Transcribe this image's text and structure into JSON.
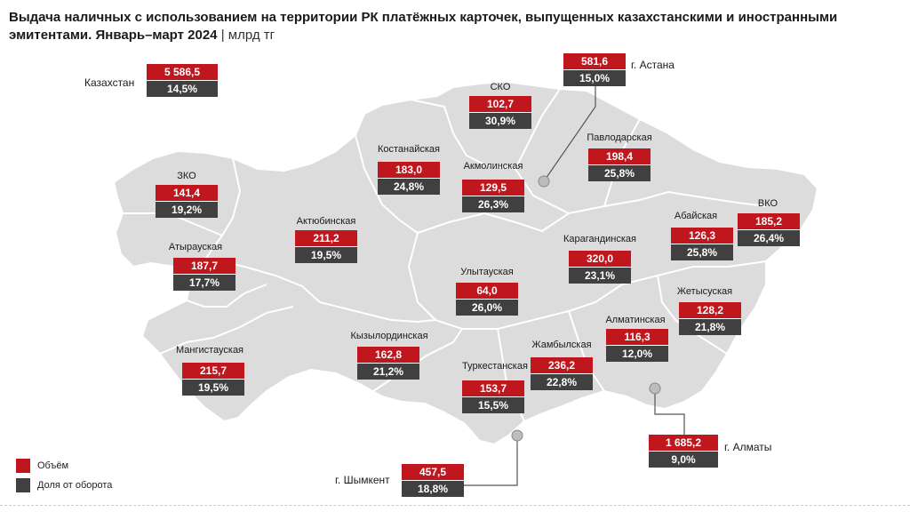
{
  "title": {
    "main": "Выдача наличных с использованием на территории РК платёжных карточек, выпущенных казахстанскими и иностранными эмитентами. Январь–март 2024",
    "separator": "|",
    "unit": "млрд тг"
  },
  "colors": {
    "volume": "#c0161d",
    "share": "#404040",
    "map_fill": "#dcdcdc",
    "map_border": "#ffffff"
  },
  "kazakhstan": {
    "label": "Казахстан",
    "volume": "5 586,5",
    "share": "14,5%"
  },
  "regions": [
    {
      "id": "sko",
      "label": "СКО",
      "volume": "102,7",
      "share": "30,9%"
    },
    {
      "id": "kostanay",
      "label": "Костанайская",
      "volume": "183,0",
      "share": "24,8%"
    },
    {
      "id": "akmola",
      "label": "Акмолинская",
      "volume": "129,5",
      "share": "26,3%"
    },
    {
      "id": "pavlodar",
      "label": "Павлодарская",
      "volume": "198,4",
      "share": "25,8%"
    },
    {
      "id": "zko",
      "label": "ЗКО",
      "volume": "141,4",
      "share": "19,2%"
    },
    {
      "id": "aktobe",
      "label": "Актюбинская",
      "volume": "211,2",
      "share": "19,5%"
    },
    {
      "id": "abay",
      "label": "Абайская",
      "volume": "126,3",
      "share": "25,8%"
    },
    {
      "id": "vko",
      "label": "ВКО",
      "volume": "185,2",
      "share": "26,4%"
    },
    {
      "id": "atyrau",
      "label": "Атырауская",
      "volume": "187,7",
      "share": "17,7%"
    },
    {
      "id": "karaganda",
      "label": "Карагандинская",
      "volume": "320,0",
      "share": "23,1%"
    },
    {
      "id": "ulytau",
      "label": "Улытауская",
      "volume": "64,0",
      "share": "26,0%"
    },
    {
      "id": "zhetysu",
      "label": "Жетысуская",
      "volume": "128,2",
      "share": "21,8%"
    },
    {
      "id": "mangystau",
      "label": "Мангистауская",
      "volume": "215,7",
      "share": "19,5%"
    },
    {
      "id": "kyzylorda",
      "label": "Кызылординская",
      "volume": "162,8",
      "share": "21,2%"
    },
    {
      "id": "almaty-region",
      "label": "Алматинская",
      "volume": "116,3",
      "share": "12,0%"
    },
    {
      "id": "zhambyl",
      "label": "Жамбылская",
      "volume": "236,2",
      "share": "22,8%"
    },
    {
      "id": "turkestan",
      "label": "Туркестанская",
      "volume": "153,7",
      "share": "15,5%"
    }
  ],
  "cities": [
    {
      "id": "astana",
      "label": "г. Астана",
      "volume": "581,6",
      "share": "15,0%"
    },
    {
      "id": "almaty",
      "label": "г. Алматы",
      "volume": "1 685,2",
      "share": "9,0%"
    },
    {
      "id": "shymkent",
      "label": "г. Шымкент",
      "volume": "457,5",
      "share": "18,8%"
    }
  ],
  "legend": {
    "volume": "Объём",
    "share": "Доля от оборота"
  }
}
